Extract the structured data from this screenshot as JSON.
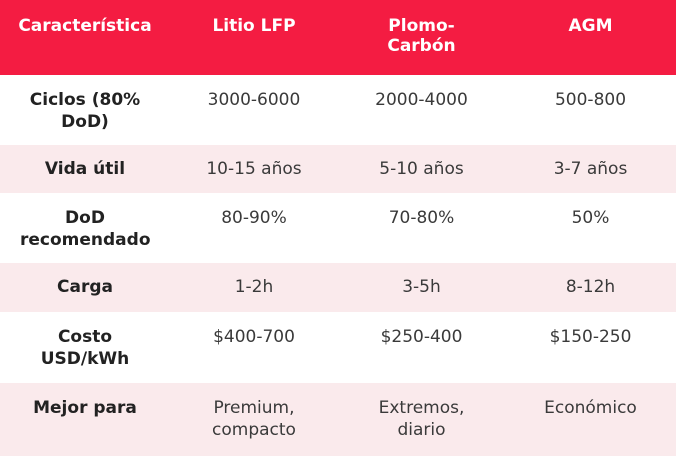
{
  "table": {
    "header": [
      "Característica",
      "Litio LFP",
      "Plomo-Carbón",
      "AGM"
    ],
    "rows": [
      [
        "Ciclos (80% DoD)",
        "3000-6000",
        "2000-4000",
        "500-800"
      ],
      [
        "Vida útil",
        "10-15 años",
        "5-10 años",
        "3-7 años"
      ],
      [
        "DoD recomendado",
        "80-90%",
        "70-80%",
        "50%"
      ],
      [
        "Carga",
        "1-2h",
        "3-5h",
        "8-12h"
      ],
      [
        "Costo USD/kWh",
        "$400-700",
        "$250-400",
        "$150-250"
      ],
      [
        "Mejor para",
        "Premium, compacto",
        "Extremos, diario",
        "Económico"
      ]
    ]
  }
}
